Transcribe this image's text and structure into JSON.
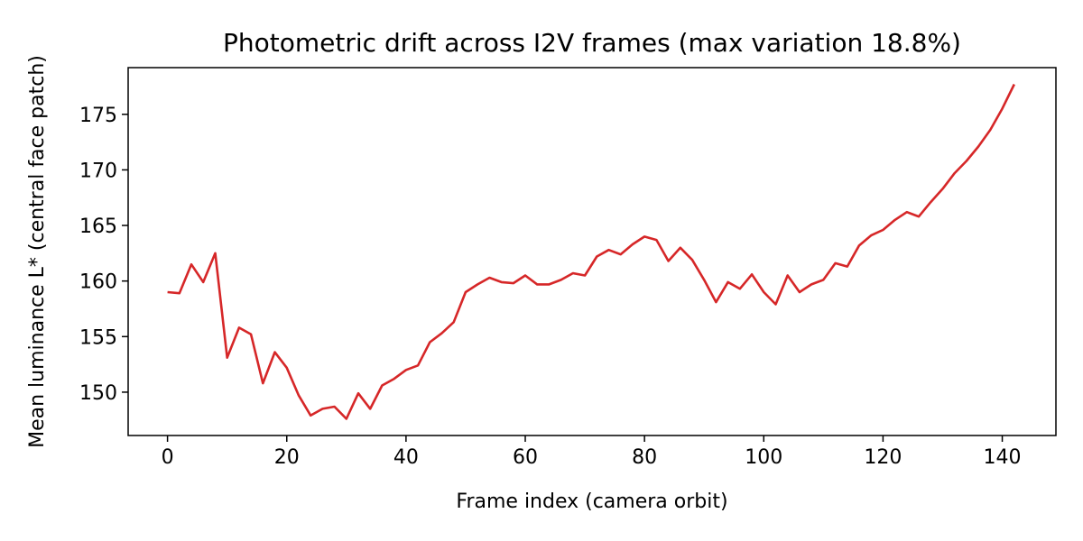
{
  "chart_data": {
    "type": "line",
    "title": "Photometric drift across I2V frames (max variation 18.8%)",
    "xlabel": "Frame index (camera orbit)",
    "ylabel": "Mean luminance L* (central face patch)",
    "xlim": [
      -6.6,
      149
    ],
    "ylim": [
      146.1,
      179.2
    ],
    "xticks": [
      0,
      20,
      40,
      60,
      80,
      100,
      120,
      140
    ],
    "yticks": [
      150,
      155,
      160,
      165,
      170,
      175
    ],
    "grid": false,
    "colors": {
      "line": "#d62728"
    },
    "series": [
      {
        "x": [
          0,
          2,
          4,
          6,
          8,
          10,
          12,
          14,
          16,
          18,
          20,
          22,
          24,
          26,
          28,
          30,
          32,
          34,
          36,
          38,
          40,
          42,
          44,
          46,
          48,
          50,
          52,
          54,
          56,
          58,
          60,
          62,
          64,
          66,
          68,
          70,
          72,
          74,
          76,
          78,
          80,
          82,
          84,
          86,
          88,
          90,
          92,
          94,
          96,
          98,
          100,
          102,
          104,
          106,
          108,
          110,
          112,
          114,
          116,
          118,
          120,
          122,
          124,
          126,
          128,
          130,
          132,
          134,
          136,
          138,
          140,
          142
        ],
        "values": [
          159.0,
          158.9,
          161.5,
          159.9,
          162.5,
          153.1,
          155.8,
          155.2,
          150.8,
          153.6,
          152.2,
          149.7,
          147.9,
          148.5,
          148.7,
          147.6,
          149.9,
          148.5,
          150.6,
          151.2,
          152.0,
          152.4,
          154.5,
          155.3,
          156.3,
          159.0,
          159.7,
          160.3,
          159.9,
          159.8,
          160.5,
          159.7,
          159.7,
          160.1,
          160.7,
          160.5,
          162.2,
          162.8,
          162.4,
          163.3,
          164.0,
          163.7,
          161.8,
          163.0,
          161.9,
          160.1,
          158.1,
          159.9,
          159.3,
          160.6,
          159.0,
          157.9,
          160.5,
          159.0,
          159.7,
          160.1,
          161.6,
          161.3,
          163.2,
          164.1,
          164.6,
          165.5,
          166.2,
          165.8,
          167.1,
          168.3,
          169.7,
          170.8,
          172.1,
          173.6,
          175.5,
          177.7
        ]
      }
    ]
  }
}
